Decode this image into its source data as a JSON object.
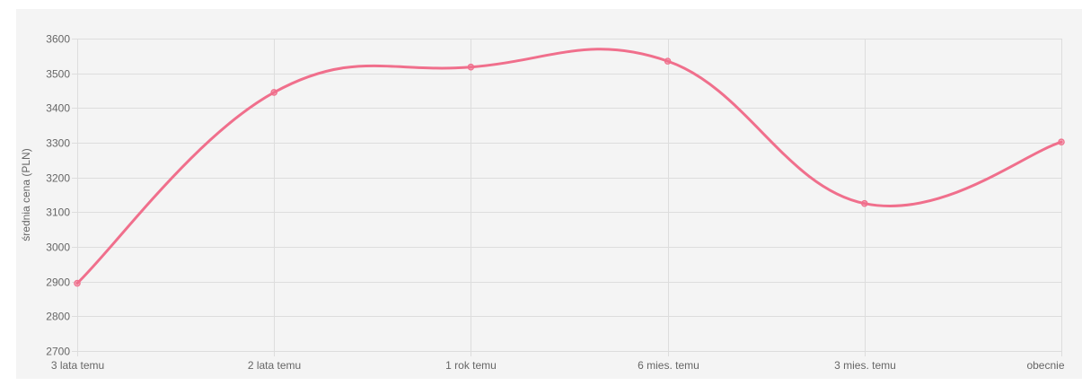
{
  "chart_data": {
    "type": "line",
    "title": "",
    "xlabel": "",
    "ylabel": "średnia cena (PLN)",
    "categories": [
      "3 lata temu",
      "2 lata temu",
      "1 rok temu",
      "6 mies. temu",
      "3 mies. temu",
      "obecnie"
    ],
    "series": [
      {
        "values": [
          2895,
          3445,
          3518,
          3535,
          3125,
          3302
        ],
        "color": "#f06f8c"
      }
    ],
    "ylim": [
      2700,
      3600
    ],
    "yticks": [
      2700,
      2800,
      2900,
      3000,
      3100,
      3200,
      3300,
      3400,
      3500,
      3600
    ],
    "grid": true,
    "legend": "none",
    "smooth": true
  },
  "colors": {
    "background": "#f4f4f4",
    "grid": "#dddddd",
    "line": "#f06f8c"
  }
}
